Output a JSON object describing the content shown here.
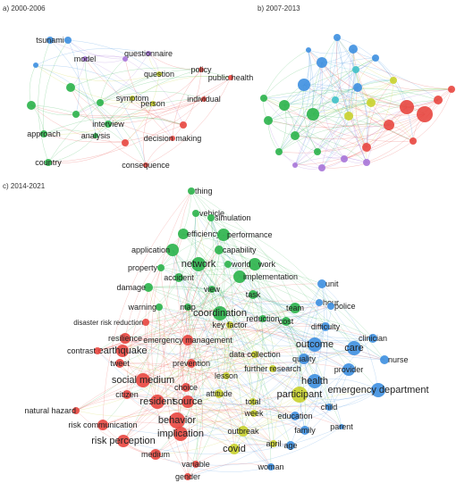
{
  "panels": {
    "a": {
      "title": "a) 2000-2006"
    },
    "b": {
      "title": "b) 2007-2013"
    },
    "c": {
      "title": "c) 2014-2021"
    }
  },
  "colors": {
    "red": "#e8463f",
    "green": "#2ab34a",
    "blue": "#3d8fe0",
    "yellow": "#c9d12c",
    "purple": "#a774d8",
    "cyan": "#3fc1c9",
    "orange": "#f0a030",
    "brown": "#a05a2c"
  },
  "networks": {
    "a": {
      "nodes": [
        {
          "label": "tsunami",
          "color": "blue"
        },
        {
          "label": "model",
          "color": "purple"
        },
        {
          "label": "questionnaire",
          "color": "purple"
        },
        {
          "label": "policy",
          "color": "red"
        },
        {
          "label": "public health",
          "color": "red"
        },
        {
          "label": "question",
          "color": "yellow"
        },
        {
          "label": "symptom",
          "color": "yellow"
        },
        {
          "label": "person",
          "color": "yellow"
        },
        {
          "label": "individual",
          "color": "red"
        },
        {
          "label": "interview",
          "color": "green"
        },
        {
          "label": "analysis",
          "color": "green"
        },
        {
          "label": "approach",
          "color": "green"
        },
        {
          "label": "decision making",
          "color": "red"
        },
        {
          "label": "country",
          "color": "green"
        },
        {
          "label": "consequence",
          "color": "red"
        },
        {
          "label": "",
          "color": "blue"
        },
        {
          "label": "",
          "color": "blue"
        },
        {
          "label": "",
          "color": "green"
        },
        {
          "label": "",
          "color": "green"
        },
        {
          "label": "",
          "color": "green"
        },
        {
          "label": "",
          "color": "red"
        },
        {
          "label": "",
          "color": "red"
        },
        {
          "label": "",
          "color": "purple"
        },
        {
          "label": "",
          "color": "green"
        }
      ]
    },
    "b": {
      "nodes": [
        {
          "label": "",
          "color": "blue"
        },
        {
          "label": "",
          "color": "blue"
        },
        {
          "label": "",
          "color": "blue"
        },
        {
          "label": "",
          "color": "blue"
        },
        {
          "label": "",
          "color": "blue"
        },
        {
          "label": "",
          "color": "blue"
        },
        {
          "label": "",
          "color": "red"
        },
        {
          "label": "",
          "color": "red"
        },
        {
          "label": "",
          "color": "red"
        },
        {
          "label": "",
          "color": "red"
        },
        {
          "label": "",
          "color": "red"
        },
        {
          "label": "",
          "color": "red"
        },
        {
          "label": "",
          "color": "green"
        },
        {
          "label": "",
          "color": "green"
        },
        {
          "label": "",
          "color": "green"
        },
        {
          "label": "",
          "color": "green"
        },
        {
          "label": "",
          "color": "green"
        },
        {
          "label": "",
          "color": "green"
        },
        {
          "label": "",
          "color": "yellow"
        },
        {
          "label": "",
          "color": "yellow"
        },
        {
          "label": "",
          "color": "yellow"
        },
        {
          "label": "",
          "color": "purple"
        },
        {
          "label": "",
          "color": "purple"
        },
        {
          "label": "",
          "color": "purple"
        },
        {
          "label": "",
          "color": "purple"
        },
        {
          "label": "",
          "color": "cyan"
        },
        {
          "label": "",
          "color": "cyan"
        },
        {
          "label": "",
          "color": "blue"
        },
        {
          "label": "",
          "color": "red"
        },
        {
          "label": "",
          "color": "green"
        }
      ]
    },
    "c": {
      "nodes": [
        {
          "label": "thing",
          "color": "green"
        },
        {
          "label": "vehicle",
          "color": "green"
        },
        {
          "label": "simulation",
          "color": "green"
        },
        {
          "label": "efficiency",
          "color": "green"
        },
        {
          "label": "performance",
          "color": "green"
        },
        {
          "label": "capability",
          "color": "green"
        },
        {
          "label": "application",
          "color": "green"
        },
        {
          "label": "network",
          "color": "green"
        },
        {
          "label": "work",
          "color": "green"
        },
        {
          "label": "world",
          "color": "green"
        },
        {
          "label": "property",
          "color": "green"
        },
        {
          "label": "accident",
          "color": "green"
        },
        {
          "label": "implementation",
          "color": "green"
        },
        {
          "label": "damage",
          "color": "green"
        },
        {
          "label": "view",
          "color": "green"
        },
        {
          "label": "task",
          "color": "green"
        },
        {
          "label": "unit",
          "color": "blue"
        },
        {
          "label": "warning",
          "color": "green"
        },
        {
          "label": "map",
          "color": "green"
        },
        {
          "label": "coordination",
          "color": "green"
        },
        {
          "label": "team",
          "color": "green"
        },
        {
          "label": "hour",
          "color": "blue"
        },
        {
          "label": "police",
          "color": "blue"
        },
        {
          "label": "disaster risk reduction",
          "color": "red"
        },
        {
          "label": "reduction",
          "color": "green"
        },
        {
          "label": "cost",
          "color": "green"
        },
        {
          "label": "key factor",
          "color": "yellow"
        },
        {
          "label": "difficulty",
          "color": "blue"
        },
        {
          "label": "resilience",
          "color": "red"
        },
        {
          "label": "emergency management",
          "color": "red"
        },
        {
          "label": "outcome",
          "color": "blue"
        },
        {
          "label": "clinician",
          "color": "blue"
        },
        {
          "label": "earthquake",
          "color": "red"
        },
        {
          "label": "care",
          "color": "blue"
        },
        {
          "label": "contrast",
          "color": "red"
        },
        {
          "label": "data collection",
          "color": "yellow"
        },
        {
          "label": "quality",
          "color": "blue"
        },
        {
          "label": "tweet",
          "color": "red"
        },
        {
          "label": "prevention",
          "color": "red"
        },
        {
          "label": "provider",
          "color": "blue"
        },
        {
          "label": "nurse",
          "color": "blue"
        },
        {
          "label": "further research",
          "color": "yellow"
        },
        {
          "label": "lesson",
          "color": "yellow"
        },
        {
          "label": "social medium",
          "color": "red"
        },
        {
          "label": "choice",
          "color": "red"
        },
        {
          "label": "health",
          "color": "blue"
        },
        {
          "label": "emergency department",
          "color": "blue"
        },
        {
          "label": "attitude",
          "color": "yellow"
        },
        {
          "label": "participant",
          "color": "yellow"
        },
        {
          "label": "citizen",
          "color": "red"
        },
        {
          "label": "resident",
          "color": "red"
        },
        {
          "label": "source",
          "color": "red"
        },
        {
          "label": "total",
          "color": "yellow"
        },
        {
          "label": "child",
          "color": "blue"
        },
        {
          "label": "week",
          "color": "yellow"
        },
        {
          "label": "natural hazard",
          "color": "red"
        },
        {
          "label": "education",
          "color": "blue"
        },
        {
          "label": "behavior",
          "color": "red"
        },
        {
          "label": "risk communication",
          "color": "red"
        },
        {
          "label": "parent",
          "color": "blue"
        },
        {
          "label": "implication",
          "color": "red"
        },
        {
          "label": "family",
          "color": "blue"
        },
        {
          "label": "outbreak",
          "color": "yellow"
        },
        {
          "label": "risk perception",
          "color": "red"
        },
        {
          "label": "april",
          "color": "yellow"
        },
        {
          "label": "age",
          "color": "blue"
        },
        {
          "label": "covid",
          "color": "yellow"
        },
        {
          "label": "medium",
          "color": "red"
        },
        {
          "label": "variable",
          "color": "red"
        },
        {
          "label": "woman",
          "color": "blue"
        },
        {
          "label": "gender",
          "color": "red"
        }
      ]
    }
  }
}
